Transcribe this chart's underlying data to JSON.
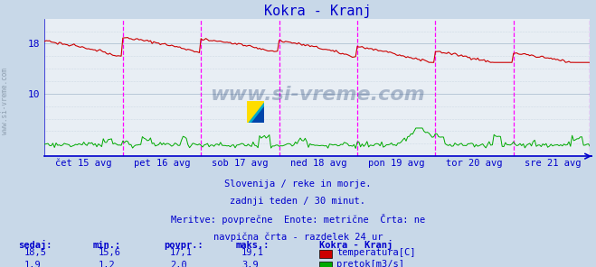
{
  "title": "Kokra - Kranj",
  "title_color": "#0000cc",
  "bg_color": "#c8d8e8",
  "plot_bg_color": "#e8eef4",
  "grid_color": "#b8c8d8",
  "x_labels": [
    "čet 15 avg",
    "pet 16 avg",
    "sob 17 avg",
    "ned 18 avg",
    "pon 19 avg",
    "tor 20 avg",
    "sre 21 avg"
  ],
  "y_ticks": [
    10,
    18
  ],
  "y_min": 0,
  "y_max": 22,
  "temp_color": "#cc0000",
  "flow_color": "#00aa00",
  "vline_color": "#ff00ff",
  "axis_color": "#0000cc",
  "text_color": "#0000cc",
  "watermark": "www.si-vreme.com",
  "sub_text1": "Slovenija / reke in morje.",
  "sub_text2": "zadnji teden / 30 minut.",
  "sub_text3": "Meritve: povprečne  Enote: metrične  Črta: ne",
  "sub_text4": "navpična črta - razdelek 24 ur",
  "stat_headers": [
    "sedaj:",
    "min.:",
    "povpr.:",
    "maks.:"
  ],
  "stat_values_temp": [
    "18,5",
    "15,6",
    "17,1",
    "19,1"
  ],
  "stat_values_flow": [
    "1,9",
    "1,2",
    "2,0",
    "3,9"
  ],
  "legend_title": "Kokra - Kranj",
  "legend_temp": "temperatura[C]",
  "legend_flow": "pretok[m3/s]",
  "n_points": 336,
  "temp_min": 15.0,
  "temp_max": 19.5,
  "flow_min": 0.5,
  "flow_max": 4.5
}
